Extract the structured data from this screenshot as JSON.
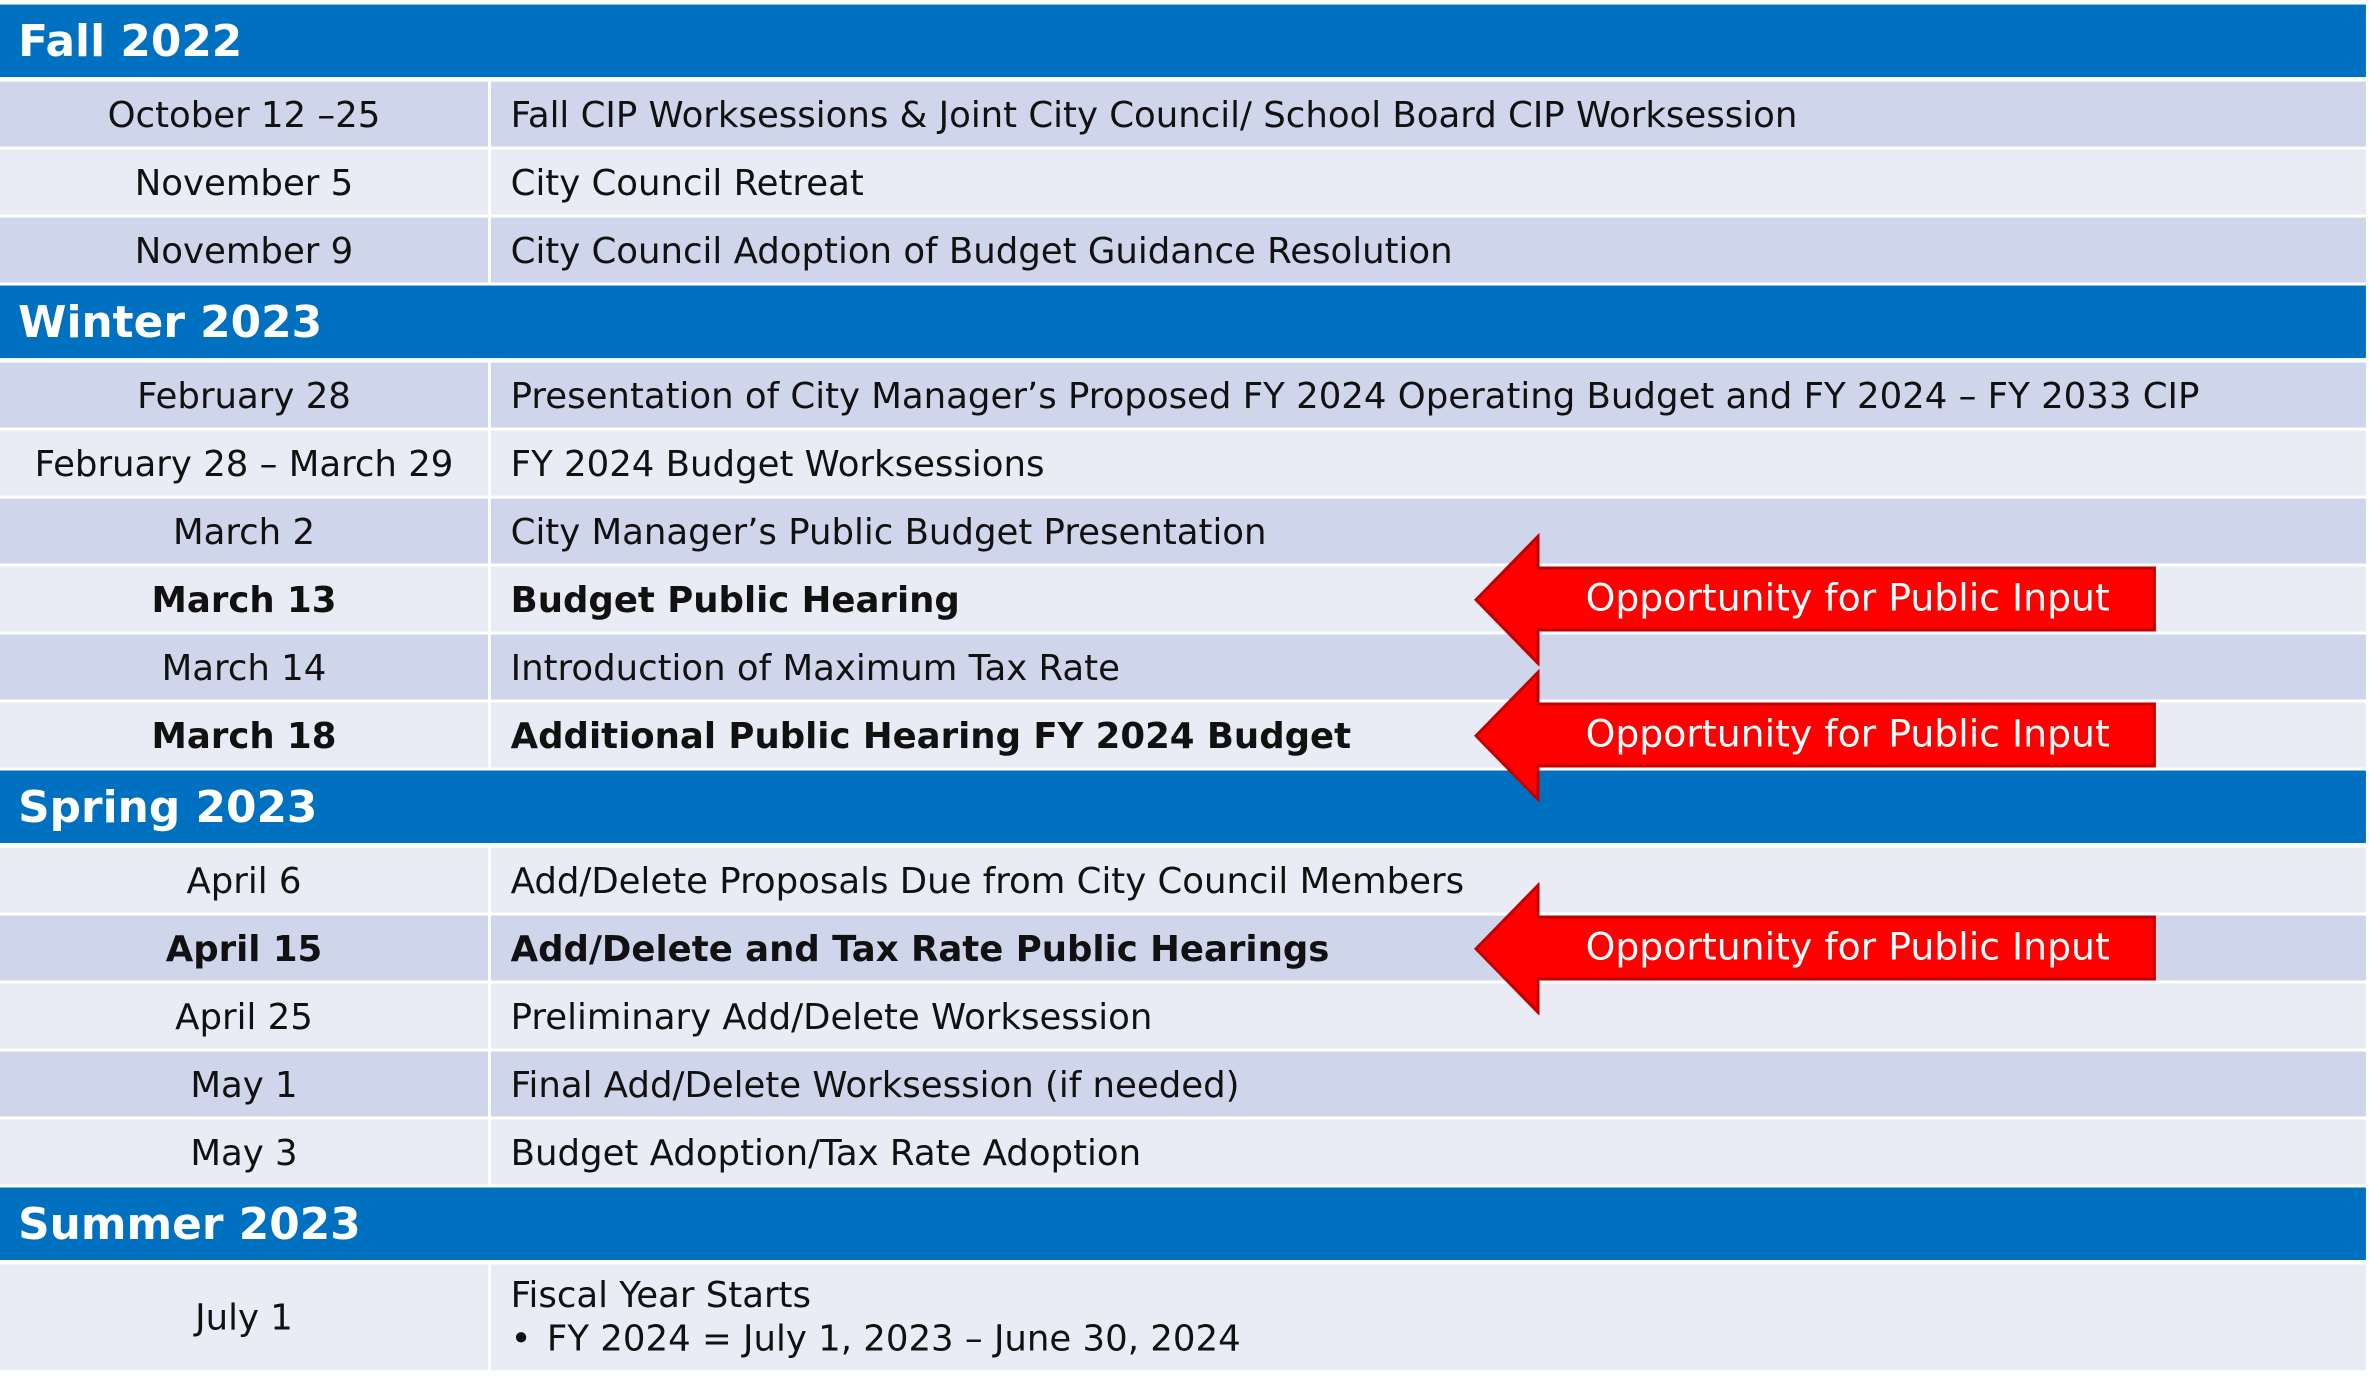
{
  "sections": [
    {
      "title": "Fall 2022",
      "rows": [
        {
          "date": "October 12 –25",
          "event": "Fall CIP Worksessions & Joint City Council/ School Board CIP Worksession"
        },
        {
          "date": "November 5",
          "event": "City Council Retreat"
        },
        {
          "date": "November 9",
          "event": "City Council Adoption of Budget Guidance Resolution"
        }
      ]
    },
    {
      "title": "Winter 2023",
      "rows": [
        {
          "date": "February 28",
          "event": "Presentation of City Manager’s Proposed FY 2024 Operating Budget and FY 2024 – FY 2033 CIP"
        },
        {
          "date": "February 28 – March 29",
          "event": "FY 2024 Budget Worksessions"
        },
        {
          "date": "March 2",
          "event": "City Manager’s Public Budget Presentation"
        },
        {
          "date": "March 13",
          "event": "Budget Public Hearing",
          "bold": true,
          "note": "Opportunity for Public Input"
        },
        {
          "date": "March 14",
          "event": "Introduction of Maximum Tax Rate"
        },
        {
          "date": "March 18",
          "event": "Additional Public Hearing FY 2024 Budget",
          "bold": true,
          "note": "Opportunity for Public Input"
        }
      ]
    },
    {
      "title": "Spring 2023",
      "rows": [
        {
          "date": "April 6",
          "event": "Add/Delete Proposals Due from City Council Members"
        },
        {
          "date": "April 15",
          "event": "Add/Delete and Tax Rate Public Hearings",
          "bold": true,
          "note": "Opportunity for Public Input"
        },
        {
          "date": "April 25",
          "event": "Preliminary Add/Delete Worksession"
        },
        {
          "date": "May 1",
          "event": "Final Add/Delete Worksession (if needed)"
        },
        {
          "date": "May 3",
          "event": "Budget Adoption/Tax Rate Adoption"
        }
      ]
    },
    {
      "title": "Summer 2023",
      "rows": [
        {
          "date": "July 1",
          "event": "Fiscal Year Starts",
          "bullet": "FY 2024 = July 1, 2023 – June 30, 2024"
        }
      ]
    }
  ]
}
